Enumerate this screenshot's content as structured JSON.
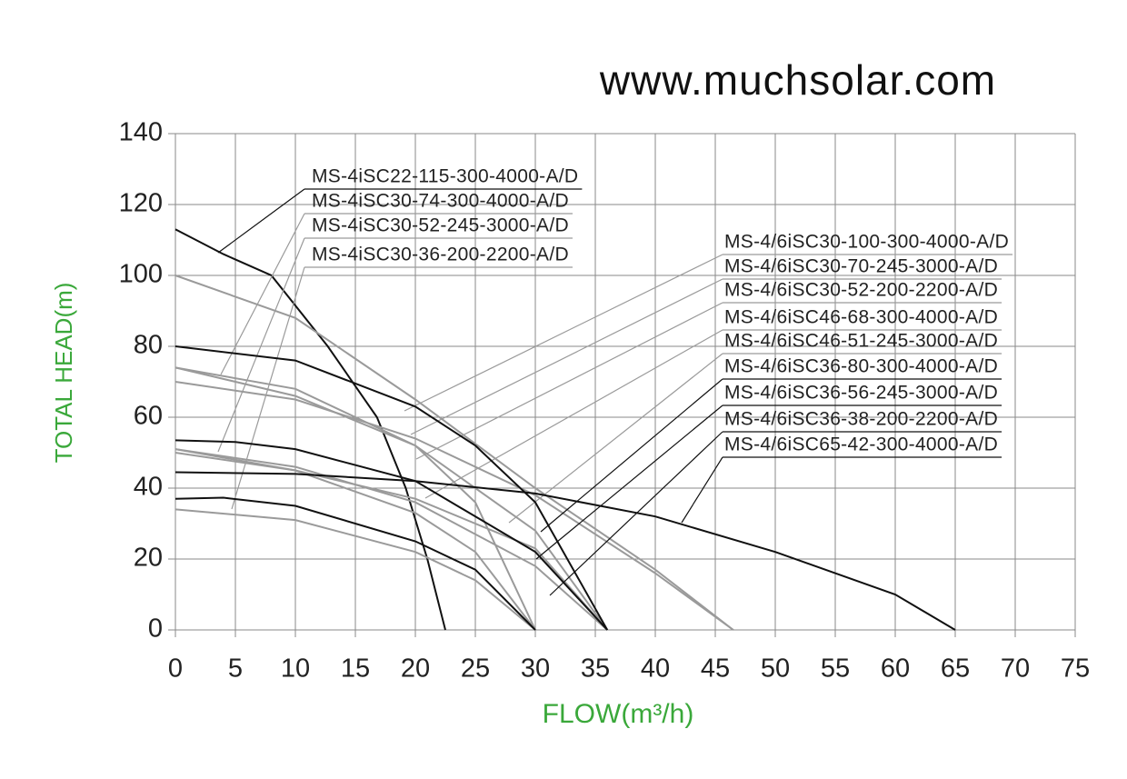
{
  "chart_data": {
    "type": "line",
    "title": "www.muchsolar.com",
    "x_label": "FLOW(m³/h)",
    "y_label": "TOTAL HEAD(m)",
    "xlim": [
      0,
      75
    ],
    "ylim": [
      0,
      140
    ],
    "xticks": [
      0,
      5,
      10,
      15,
      20,
      25,
      30,
      35,
      40,
      45,
      50,
      55,
      60,
      65,
      70,
      75
    ],
    "yticks": [
      0,
      20,
      40,
      60,
      80,
      100,
      120,
      140
    ],
    "grid": true,
    "series": [
      {
        "name": "MS-4iSC22-115-300-4000-A/D",
        "color": "#111111",
        "x": [
          0,
          4,
          8,
          12.7,
          16.8,
          19.2,
          21,
          22.5
        ],
        "values": [
          113,
          106,
          100,
          80,
          60,
          40,
          20,
          0
        ]
      },
      {
        "name": "MS-4iSC30-74-300-4000-A/D",
        "color": "#9a9a9a",
        "x": [
          0,
          10,
          20,
          25,
          30
        ],
        "values": [
          74,
          68,
          52,
          36,
          0
        ]
      },
      {
        "name": "MS-4iSC30-52-245-3000-A/D",
        "color": "#9a9a9a",
        "x": [
          0,
          10,
          20,
          25,
          30
        ],
        "values": [
          51,
          45,
          33,
          22,
          0
        ]
      },
      {
        "name": "MS-4iSC30-36-200-2200-A/D",
        "color": "#9a9a9a",
        "x": [
          0,
          10,
          20,
          25,
          30
        ],
        "values": [
          34,
          31,
          22,
          14,
          0
        ]
      },
      {
        "name": "MS-4/6iSC30-100-300-4000-A/D",
        "color": "#9a9a9a",
        "x": [
          0,
          10,
          20,
          30,
          40,
          46.5
        ],
        "values": [
          100,
          88,
          65,
          40,
          17,
          0
        ]
      },
      {
        "name": "MS-4/6iSC30-70-245-3000-A/D",
        "color": "#9a9a9a",
        "x": [
          0,
          10,
          20,
          30,
          40,
          46.5
        ],
        "values": [
          70,
          65,
          54,
          38,
          16,
          0
        ]
      },
      {
        "name": "MS-4/6iSC30-52-200-2200-A/D",
        "color": "#9a9a9a",
        "x": [
          0,
          10,
          20,
          30,
          36
        ],
        "values": [
          50,
          45,
          37,
          23,
          0
        ]
      },
      {
        "name": "MS-4/6iSC46-68-300-4000-A/D",
        "color": "#9a9a9a",
        "x": [
          0,
          10,
          20,
          30,
          36
        ],
        "values": [
          74,
          66,
          52,
          28,
          0
        ]
      },
      {
        "name": "MS-4/6iSC46-51-245-3000-A/D",
        "color": "#9a9a9a",
        "x": [
          0,
          10,
          20,
          30,
          36
        ],
        "values": [
          51,
          46,
          36,
          18,
          0
        ]
      },
      {
        "name": "MS-4/6iSC36-80-300-4000-A/D",
        "color": "#111111",
        "x": [
          0,
          10,
          20,
          25,
          30,
          36
        ],
        "values": [
          80,
          76,
          63,
          52,
          36,
          0
        ]
      },
      {
        "name": "MS-4/6iSC36-56-245-3000-A/D",
        "color": "#111111",
        "x": [
          0,
          5,
          10,
          20,
          30,
          36
        ],
        "values": [
          53.5,
          53,
          51,
          42,
          22,
          0
        ]
      },
      {
        "name": "MS-4/6iSC36-38-200-2200-A/D",
        "color": "#111111",
        "x": [
          0,
          4,
          10,
          20,
          25,
          30
        ],
        "values": [
          37,
          37.3,
          35,
          25,
          17,
          0
        ]
      },
      {
        "name": "MS-4/6iSC65-42-300-4000-A/D",
        "color": "#111111",
        "x": [
          0,
          10,
          20,
          30,
          40,
          50,
          60,
          65
        ],
        "values": [
          44.5,
          44,
          42,
          38.5,
          32,
          22,
          10,
          0
        ]
      }
    ]
  }
}
